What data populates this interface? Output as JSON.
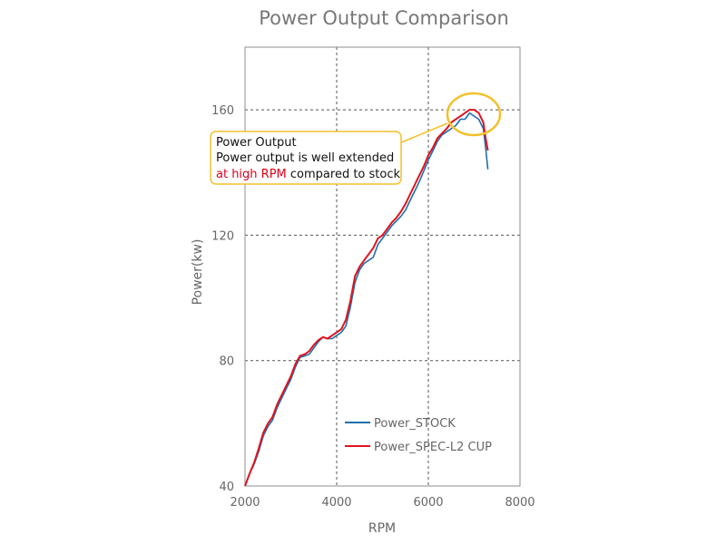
{
  "chart_data": {
    "type": "line",
    "title": "Power Output Comparison",
    "xlabel": "RPM",
    "ylabel": "Power(kw)",
    "xlim": [
      2000,
      8000
    ],
    "ylim": [
      40,
      180
    ],
    "x_ticks": [
      2000,
      4000,
      6000,
      8000
    ],
    "y_ticks": [
      40,
      80,
      120,
      160
    ],
    "grid": true,
    "legend_position": "lower-right",
    "annotation": {
      "line1": "Power Output",
      "line2": "Power output is well extended",
      "line3_highlight": "at high RPM",
      "line3_rest": " compared to stock",
      "highlight_color": "#e0001a",
      "border_color": "#f2c12e"
    },
    "series": [
      {
        "name": "Power_STOCK",
        "color": "#1f6fad",
        "x": [
          2000,
          2100,
          2200,
          2300,
          2400,
          2500,
          2600,
          2700,
          2800,
          2900,
          3000,
          3100,
          3200,
          3300,
          3400,
          3500,
          3600,
          3700,
          3800,
          3900,
          4000,
          4100,
          4200,
          4300,
          4400,
          4500,
          4600,
          4700,
          4800,
          4900,
          5000,
          5100,
          5200,
          5300,
          5400,
          5500,
          5600,
          5700,
          5800,
          5900,
          6000,
          6100,
          6200,
          6300,
          6400,
          6500,
          6600,
          6700,
          6800,
          6900,
          7000,
          7100,
          7200,
          7250,
          7300
        ],
        "y": [
          40,
          44,
          47,
          51,
          56,
          59,
          61,
          65,
          68,
          71,
          74,
          78,
          81,
          81.5,
          82,
          84,
          86,
          87.5,
          87,
          87,
          88,
          89,
          91,
          97,
          105,
          109,
          111,
          112,
          113,
          117,
          119,
          121,
          123,
          124.5,
          126,
          128,
          131,
          134,
          137,
          140.5,
          144,
          147,
          150,
          152,
          153,
          154,
          155,
          157,
          157,
          159,
          158,
          157,
          154,
          148,
          141
        ]
      },
      {
        "name": "Power_SPEC-L2 CUP",
        "color": "#e0141e",
        "x": [
          2000,
          2100,
          2200,
          2300,
          2400,
          2500,
          2600,
          2700,
          2800,
          2900,
          3000,
          3100,
          3200,
          3300,
          3400,
          3500,
          3600,
          3700,
          3800,
          3900,
          4000,
          4100,
          4200,
          4300,
          4400,
          4500,
          4600,
          4700,
          4800,
          4900,
          5000,
          5100,
          5200,
          5300,
          5400,
          5500,
          5600,
          5700,
          5800,
          5900,
          6000,
          6100,
          6200,
          6300,
          6400,
          6500,
          6600,
          6700,
          6800,
          6900,
          7000,
          7100,
          7200,
          7250,
          7300
        ],
        "y": [
          40,
          44,
          47.5,
          52,
          57,
          60,
          62,
          66,
          69,
          72,
          75,
          79,
          81.5,
          82,
          83,
          85,
          86.5,
          87.5,
          87,
          88,
          89,
          90,
          93,
          99,
          107,
          110,
          112,
          114,
          116,
          119,
          120,
          122,
          124,
          125.5,
          127.5,
          130,
          133,
          136,
          139,
          142,
          145.5,
          148,
          151,
          152.5,
          154,
          156,
          157,
          158,
          159,
          160,
          160,
          159,
          156,
          151,
          147
        ]
      }
    ]
  }
}
